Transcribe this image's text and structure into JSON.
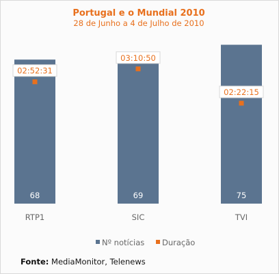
{
  "chart_data": {
    "type": "bar",
    "title": "Portugal e o Mundial 2010",
    "subtitle": "28 de Junho a 4 de Julho de 2010",
    "categories": [
      "RTP1",
      "SIC",
      "TVI"
    ],
    "series": [
      {
        "name": "Nº notícias",
        "type": "bar",
        "values": [
          68,
          69,
          75
        ],
        "value_labels": [
          "68",
          "69",
          "75"
        ],
        "color": "#5b7490"
      },
      {
        "name": "Duração",
        "type": "scatter",
        "values": [
          10351,
          11450,
          8535
        ],
        "value_labels": [
          "02:52:31",
          "03:10:50",
          "02:22:15"
        ],
        "color": "#e8701d"
      }
    ],
    "bar_axis_range": [
      0,
      80
    ],
    "duration_axis_range_seconds": [
      0,
      14400
    ],
    "legend_position": "bottom",
    "grid": false
  },
  "source": {
    "label": "Fonte:",
    "text": " MediaMonitor, Telenews"
  }
}
